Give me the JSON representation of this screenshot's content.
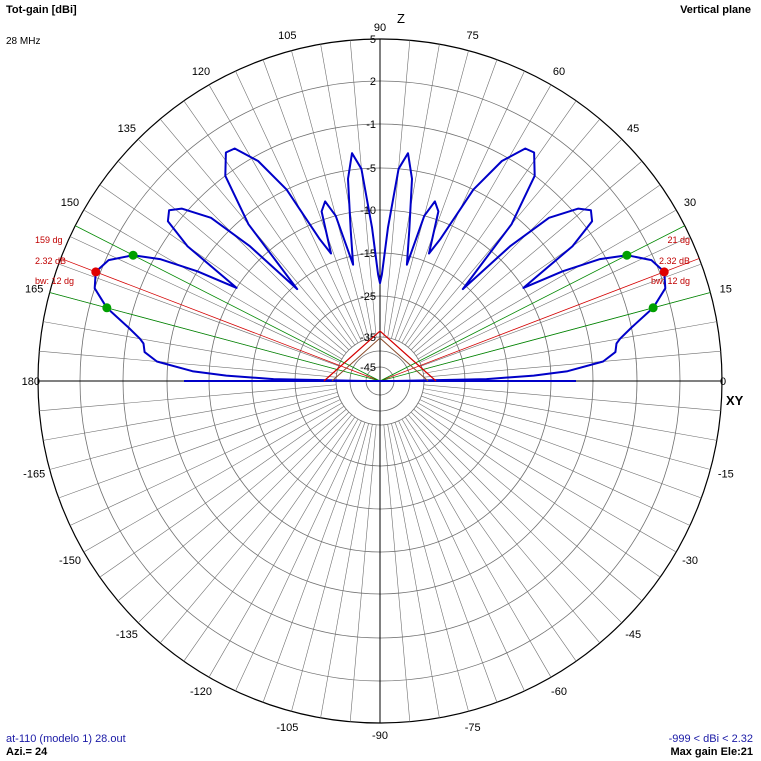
{
  "header": {
    "title": "Tot-gain [dBi]",
    "frequency": "28 MHz",
    "plane": "Vertical plane"
  },
  "footer": {
    "file": "at-110 (modelo 1) 28.out",
    "azimuth": "Azi.= 24",
    "range": "-999 < dBi < 2.32",
    "max_gain": "Max gain Ele:21"
  },
  "axis_labels": {
    "z": "Z",
    "xy": "XY"
  },
  "chart_data": {
    "type": "polar",
    "title": "Tot-gain [dBi]",
    "angle_labels": [
      "0",
      "15",
      "30",
      "45",
      "60",
      "75",
      "90",
      "105",
      "120",
      "135",
      "150",
      "165",
      "180",
      "-165",
      "-150",
      "-135",
      "-120",
      "-105",
      "-90",
      "-75",
      "-60",
      "-45",
      "-30",
      "-15"
    ],
    "radial_ticks": [
      "5",
      "2",
      "-1",
      "-5",
      "-10",
      "-15",
      "-25",
      "-35",
      "-45"
    ],
    "radial_tick_values": [
      5,
      2,
      -1,
      -5,
      -10,
      -15,
      -25,
      -35,
      -45
    ],
    "max_gain_dbi": 2.32,
    "max_gain_elevation_deg": 21,
    "beamwidth_deg": 12,
    "annotations_right": [
      "21 dg",
      "2.32 dB",
      "bw: 12 dg"
    ],
    "annotations_left": [
      "159 dg",
      "2.32 dB",
      "bw: 12 dg"
    ],
    "gain_pattern_right_half": [
      {
        "elevation": 0,
        "gain_dbi": -45
      },
      {
        "elevation": 1,
        "gain_dbi": -20
      },
      {
        "elevation": 2,
        "gain_dbi": -12
      },
      {
        "elevation": 3,
        "gain_dbi": -8
      },
      {
        "elevation": 5,
        "gain_dbi": -4
      },
      {
        "elevation": 7,
        "gain_dbi": -2.8
      },
      {
        "elevation": 9,
        "gain_dbi": -2.6
      },
      {
        "elevation": 10,
        "gain_dbi": -2.2
      },
      {
        "elevation": 12,
        "gain_dbi": -1
      },
      {
        "elevation": 15,
        "gain_dbi": 0.8
      },
      {
        "elevation": 18,
        "gain_dbi": 2
      },
      {
        "elevation": 21,
        "gain_dbi": 2.32
      },
      {
        "elevation": 24,
        "gain_dbi": 1.8
      },
      {
        "elevation": 27,
        "gain_dbi": 0.4
      },
      {
        "elevation": 29,
        "gain_dbi": -1.5
      },
      {
        "elevation": 31,
        "gain_dbi": -5
      },
      {
        "elevation": 33,
        "gain_dbi": -10
      },
      {
        "elevation": 35,
        "gain_dbi": -3
      },
      {
        "elevation": 37,
        "gain_dbi": -0.4
      },
      {
        "elevation": 39,
        "gain_dbi": 0
      },
      {
        "elevation": 41,
        "gain_dbi": -0.6
      },
      {
        "elevation": 44,
        "gain_dbi": -3
      },
      {
        "elevation": 46,
        "gain_dbi": -8
      },
      {
        "elevation": 48,
        "gain_dbi": -16
      },
      {
        "elevation": 50,
        "gain_dbi": -6
      },
      {
        "elevation": 53,
        "gain_dbi": -1
      },
      {
        "elevation": 56,
        "gain_dbi": 0.3
      },
      {
        "elevation": 58,
        "gain_dbi": 0.2
      },
      {
        "elevation": 61,
        "gain_dbi": -1.5
      },
      {
        "elevation": 64,
        "gain_dbi": -5
      },
      {
        "elevation": 67,
        "gain_dbi": -12
      },
      {
        "elevation": 69,
        "gain_dbi": -14
      },
      {
        "elevation": 71,
        "gain_dbi": -9
      },
      {
        "elevation": 73,
        "gain_dbi": -8
      },
      {
        "elevation": 75,
        "gain_dbi": -10
      },
      {
        "elevation": 77,
        "gain_dbi": -17
      },
      {
        "elevation": 79,
        "gain_dbi": -12
      },
      {
        "elevation": 81,
        "gain_dbi": -6
      },
      {
        "elevation": 83,
        "gain_dbi": -3.5
      },
      {
        "elevation": 85,
        "gain_dbi": -5
      },
      {
        "elevation": 87,
        "gain_dbi": -12
      },
      {
        "elevation": 89,
        "gain_dbi": -20
      },
      {
        "elevation": 90,
        "gain_dbi": -22
      }
    ],
    "colors": {
      "pattern": "#0000c8",
      "max_lines": "#d40000",
      "bw_lines": "#008800",
      "grid": "#707070",
      "annotation": "#c00000"
    }
  }
}
